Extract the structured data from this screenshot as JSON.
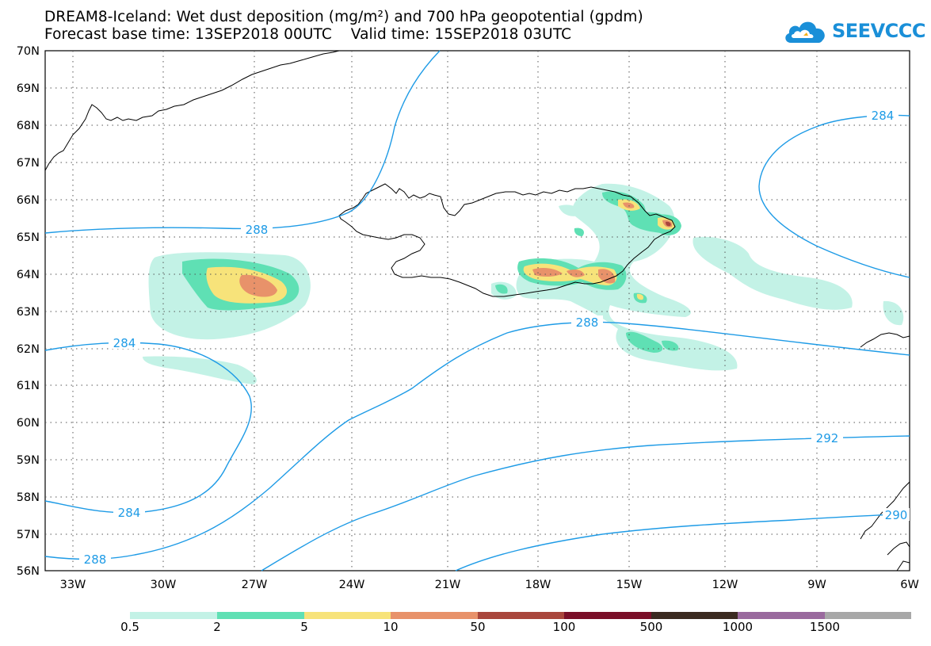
{
  "header": {
    "title_line1": "DREAM8-Iceland: Wet dust deposition (mg/m²) and 700 hPa geopotential (gpdm)",
    "title_line2": "Forecast base time: 13SEP2018 00UTC    Valid time: 15SEP2018 03UTC"
  },
  "logo": {
    "text": "SEEVCCC",
    "icon": "cloud-logo-icon"
  },
  "axes": {
    "lat_labels": [
      "70N",
      "69N",
      "68N",
      "67N",
      "66N",
      "65N",
      "64N",
      "63N",
      "62N",
      "61N",
      "60N",
      "59N",
      "58N",
      "57N",
      "56N"
    ],
    "lon_labels": [
      "33W",
      "30W",
      "27W",
      "24W",
      "21W",
      "18W",
      "15W",
      "12W",
      "9W",
      "6W"
    ]
  },
  "contours": {
    "labels": [
      "288",
      "284",
      "284",
      "288",
      "284",
      "288",
      "292",
      "290"
    ]
  },
  "legend": {
    "labels": [
      "0.5",
      "2",
      "5",
      "10",
      "50",
      "100",
      "500",
      "1000",
      "1500"
    ],
    "colors": [
      "#c3f2e6",
      "#5fe0b4",
      "#f7e37a",
      "#e8926a",
      "#a9463c",
      "#7a0f28",
      "#3a2a20",
      "#9a6a9e",
      "#a8a8a8"
    ]
  },
  "colors": {
    "contour": "#1e9be6",
    "coast": "#000000"
  }
}
